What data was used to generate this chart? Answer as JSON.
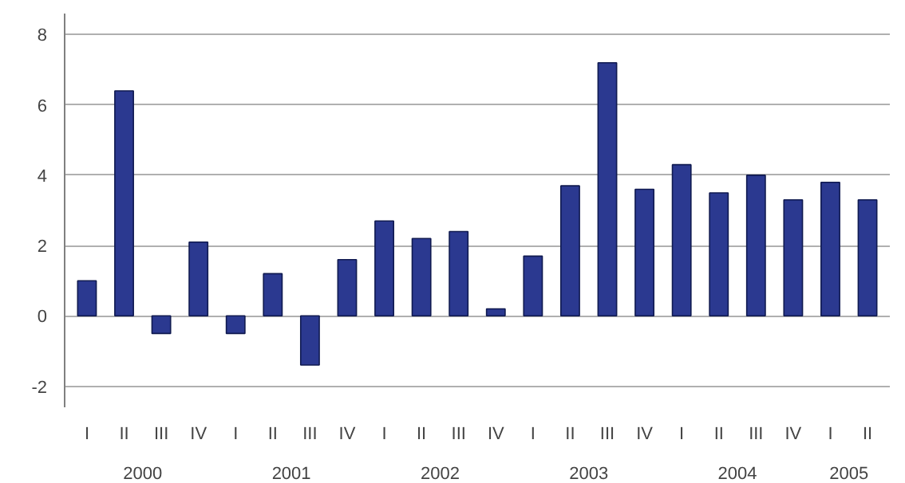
{
  "chart_data": {
    "type": "bar",
    "categories": [
      "I",
      "II",
      "III",
      "IV",
      "I",
      "II",
      "III",
      "IV",
      "I",
      "II",
      "III",
      "IV",
      "I",
      "II",
      "III",
      "IV",
      "I",
      "II",
      "III",
      "IV",
      "I",
      "II"
    ],
    "values": [
      1.0,
      6.4,
      -0.5,
      2.1,
      -0.5,
      1.2,
      -1.4,
      1.6,
      2.7,
      2.2,
      2.4,
      0.2,
      1.7,
      3.7,
      7.2,
      3.6,
      4.3,
      3.5,
      4.0,
      3.3,
      3.8,
      3.3
    ],
    "color": "#2b3990",
    "ylim": [
      -2.6,
      8.6
    ],
    "yticks": [
      -2,
      0,
      2,
      4,
      6,
      8
    ],
    "grid": "y",
    "annotations": [
      "2000",
      "2001",
      "2002",
      "2003",
      "2004",
      "2005"
    ]
  }
}
